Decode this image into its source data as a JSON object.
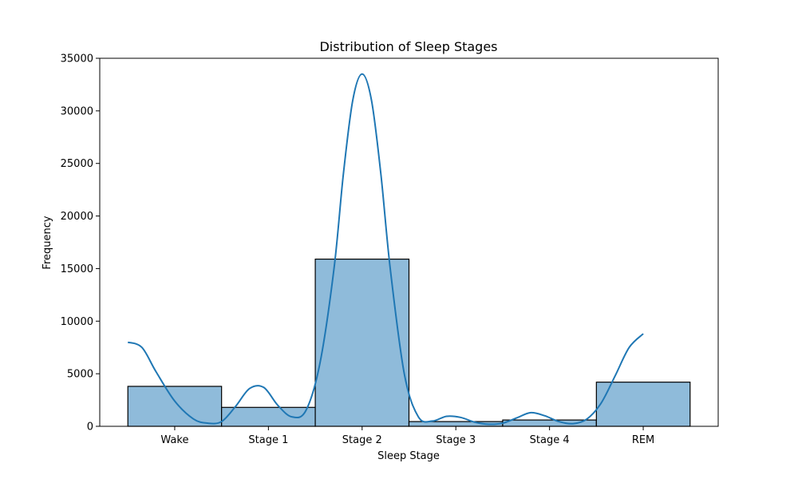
{
  "chart_data": {
    "type": "bar",
    "title": "Distribution of Sleep Stages",
    "xlabel": "Sleep Stage",
    "ylabel": "Frequency",
    "categories": [
      "Wake",
      "Stage 1",
      "Stage 2",
      "Stage 3",
      "Stage 4",
      "REM"
    ],
    "values": [
      3800,
      1800,
      15900,
      450,
      600,
      4200
    ],
    "ylim": [
      0,
      35000
    ],
    "yticks": [
      0,
      5000,
      10000,
      15000,
      20000,
      25000,
      30000,
      35000
    ],
    "kde": {
      "x": [
        -0.5,
        -0.35,
        -0.2,
        0.0,
        0.2,
        0.35,
        0.5,
        0.65,
        0.8,
        0.95,
        1.1,
        1.25,
        1.4,
        1.55,
        1.7,
        1.8,
        1.9,
        2.0,
        2.1,
        2.2,
        2.3,
        2.45,
        2.6,
        2.75,
        2.9,
        3.05,
        3.2,
        3.35,
        3.5,
        3.65,
        3.8,
        3.95,
        4.1,
        4.25,
        4.4,
        4.55,
        4.7,
        4.85,
        5.0
      ],
      "y": [
        8000,
        7500,
        5200,
        2400,
        700,
        300,
        450,
        1900,
        3600,
        3700,
        2000,
        900,
        1500,
        6000,
        15000,
        24000,
        31000,
        33500,
        31000,
        24000,
        15000,
        5000,
        900,
        500,
        950,
        850,
        400,
        200,
        300,
        800,
        1300,
        1000,
        450,
        250,
        700,
        2200,
        4800,
        7500,
        8800
      ]
    },
    "bar_color": "#8fbbda",
    "line_color": "#1f77b4",
    "grid": false
  }
}
